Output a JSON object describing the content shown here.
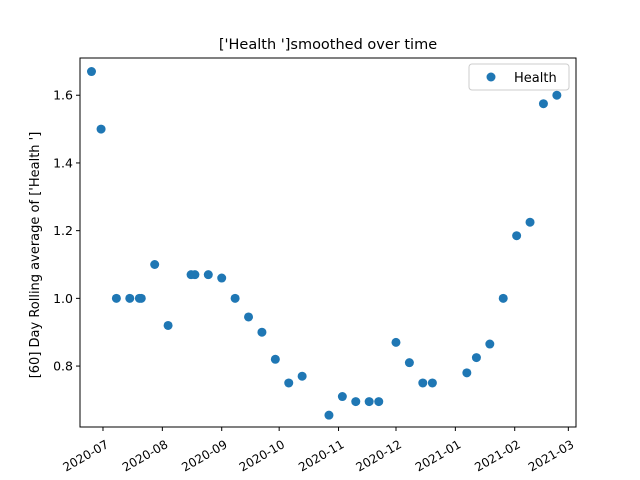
{
  "chart_data": {
    "type": "scatter",
    "title": "['Health ']smoothed over time",
    "xlabel": "",
    "ylabel": "[60] Day Rolling average of ['Health ']",
    "x_type": "date",
    "xlim": [
      "2020-06-19",
      "2021-03-05"
    ],
    "ylim": [
      0.62,
      1.71
    ],
    "x_ticks": [
      "2020-07-01",
      "2020-08-01",
      "2020-09-01",
      "2020-10-01",
      "2020-11-01",
      "2020-12-01",
      "2021-01-01",
      "2021-02-01",
      "2021-03-01"
    ],
    "x_tick_labels": [
      "2020-07",
      "2020-08",
      "2020-09",
      "2020-10",
      "2020-11",
      "2020-12",
      "2021-01",
      "2021-02",
      "2021-03"
    ],
    "y_ticks": [
      0.8,
      1.0,
      1.2,
      1.4,
      1.6
    ],
    "y_tick_labels": [
      "0.8",
      "1.0",
      "1.2",
      "1.4",
      "1.6"
    ],
    "grid": false,
    "legend_position": "top-right",
    "series": [
      {
        "name": "Health",
        "color": "#1f77b4",
        "marker": "circle",
        "points": [
          {
            "x": "2020-06-25",
            "y": 1.67
          },
          {
            "x": "2020-06-30",
            "y": 1.5
          },
          {
            "x": "2020-07-08",
            "y": 1.0
          },
          {
            "x": "2020-07-15",
            "y": 1.0
          },
          {
            "x": "2020-07-20",
            "y": 1.0
          },
          {
            "x": "2020-07-21",
            "y": 1.0
          },
          {
            "x": "2020-07-28",
            "y": 1.1
          },
          {
            "x": "2020-08-04",
            "y": 0.92
          },
          {
            "x": "2020-08-16",
            "y": 1.07
          },
          {
            "x": "2020-08-18",
            "y": 1.07
          },
          {
            "x": "2020-08-25",
            "y": 1.07
          },
          {
            "x": "2020-09-01",
            "y": 1.06
          },
          {
            "x": "2020-09-08",
            "y": 1.0
          },
          {
            "x": "2020-09-15",
            "y": 0.945
          },
          {
            "x": "2020-09-22",
            "y": 0.9
          },
          {
            "x": "2020-09-29",
            "y": 0.82
          },
          {
            "x": "2020-10-06",
            "y": 0.75
          },
          {
            "x": "2020-10-13",
            "y": 0.77
          },
          {
            "x": "2020-10-27",
            "y": 0.655
          },
          {
            "x": "2020-11-03",
            "y": 0.71
          },
          {
            "x": "2020-11-10",
            "y": 0.695
          },
          {
            "x": "2020-11-17",
            "y": 0.695
          },
          {
            "x": "2020-11-22",
            "y": 0.695
          },
          {
            "x": "2020-12-01",
            "y": 0.87
          },
          {
            "x": "2020-12-08",
            "y": 0.81
          },
          {
            "x": "2020-12-15",
            "y": 0.75
          },
          {
            "x": "2020-12-20",
            "y": 0.75
          },
          {
            "x": "2021-01-07",
            "y": 0.78
          },
          {
            "x": "2021-01-12",
            "y": 0.825
          },
          {
            "x": "2021-01-19",
            "y": 0.865
          },
          {
            "x": "2021-01-26",
            "y": 1.0
          },
          {
            "x": "2021-02-02",
            "y": 1.185
          },
          {
            "x": "2021-02-09",
            "y": 1.225
          },
          {
            "x": "2021-02-16",
            "y": 1.575
          },
          {
            "x": "2021-02-23",
            "y": 1.6
          }
        ]
      }
    ]
  }
}
